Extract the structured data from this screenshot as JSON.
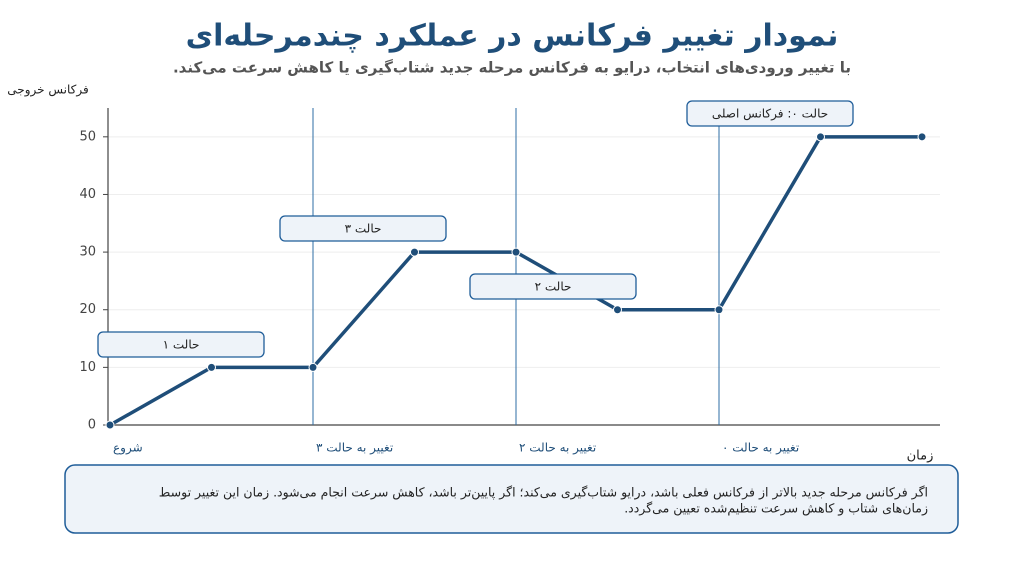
{
  "chart_data": {
    "type": "line",
    "title": "نمودار تغییر فرکانس در عملکرد چندمرحله‌ای",
    "subtitle": "با تغییر ورودی‌های انتخاب، درایو به فرکانس مرحله جدید شتاب‌گیری یا کاهش سرعت می‌کند.",
    "y_label": "فرکانس خروجی",
    "x_label": "زمان",
    "categories": [
      "شروع",
      null,
      "تغییر به حالت ۳",
      null,
      "تغییر به حالت ۲",
      null,
      "تغییر به حالت ۰",
      null,
      null
    ],
    "values": [
      0,
      10,
      10,
      30,
      30,
      20,
      20,
      50,
      50
    ],
    "color": "#1f4e79",
    "ylim": [
      0,
      55
    ],
    "yticks": [
      0,
      10,
      20,
      30,
      40,
      50
    ],
    "grid": true,
    "annotations": [
      "حالت ۱",
      "حالت ۳",
      "حالت ۲",
      "حالت ۰: فرکانس اصلی"
    ],
    "note": [
      "اگر فرکانس مرحله جدید بالاتر از فرکانس فعلی باشد، درایو شتاب‌گیری می‌کند؛ اگر پایین‌تر باشد، کاهش سرعت انجام می‌شود. زمان این تغییر توسط",
      "زمان‌های شتاب و کاهش سرعت تنظیم‌شده تعیین می‌گردد."
    ]
  }
}
